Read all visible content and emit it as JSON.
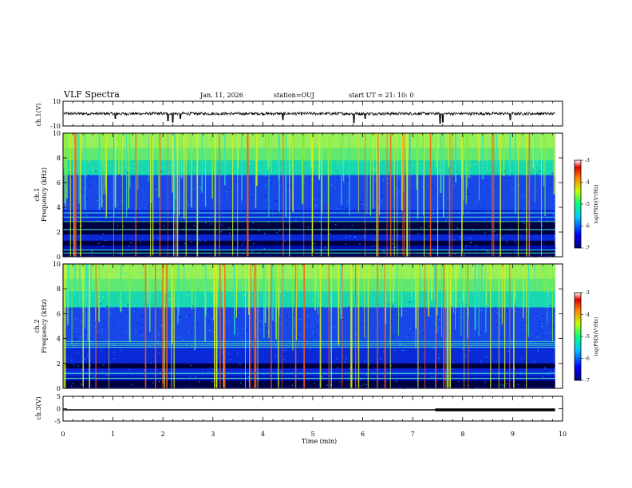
{
  "header": {
    "title": "VLF Spectra",
    "date": "Jan. 11, 2026",
    "station": "station=OUJ",
    "start": "start  UT =  21: 10: 0"
  },
  "chart_data": [
    {
      "id": "ch1-waveform",
      "type": "line",
      "ylabel": "ch.1(V)",
      "ylim": [
        -10,
        10
      ],
      "yticks": [
        "10",
        "-10"
      ],
      "baseline": 0,
      "noise_amplitude": 1.2,
      "spikes": [
        {
          "t": 1.05,
          "v": -4
        },
        {
          "t": 2.1,
          "v": -6
        },
        {
          "t": 2.2,
          "v": -7
        },
        {
          "t": 2.35,
          "v": -4
        },
        {
          "t": 4.4,
          "v": -5
        },
        {
          "t": 5.82,
          "v": -7.5
        },
        {
          "t": 6.05,
          "v": -4
        },
        {
          "t": 7.55,
          "v": -8
        },
        {
          "t": 7.6,
          "v": -7
        },
        {
          "t": 8.95,
          "v": -5
        }
      ]
    },
    {
      "id": "ch1-spectrogram",
      "type": "heatmap",
      "ylabel": "ch.1\nFrequency (kHz)",
      "ylabel_line1": "ch.1",
      "ylabel_line2": "Frequency (kHz)",
      "ylim": [
        0,
        10
      ],
      "yticks": [
        "0",
        "2",
        "4",
        "6",
        "8",
        "10"
      ],
      "colorbar": {
        "label": "log(PSD)(V²/Hz)",
        "range": [
          -7,
          -3
        ],
        "ticks": [
          "-3",
          "-4",
          "-5",
          "-6",
          "-7"
        ]
      },
      "dark_bands_khz": [
        [
          1.8,
          2.9
        ],
        [
          0.9,
          1.3
        ],
        [
          0.1,
          0.5
        ]
      ],
      "bright_lines_khz": [
        0.3,
        0.55,
        2.2,
        2.85,
        3.2,
        3.55
      ],
      "cutoff_khz": 6.6
    },
    {
      "id": "ch2-spectrogram",
      "type": "heatmap",
      "ylabel": "ch.2\nFrequency (kHz)",
      "ylabel_line1": "ch.2",
      "ylabel_line2": "Frequency (kHz)",
      "ylim": [
        0,
        10
      ],
      "yticks": [
        "0",
        "2",
        "4",
        "6",
        "8",
        "10"
      ],
      "colorbar": {
        "label": "log(PSD)(V²/Hz)",
        "range": [
          -7,
          -3
        ],
        "ticks": [
          "-3",
          "-4",
          "-5",
          "-6",
          "-7"
        ]
      },
      "dark_bands_khz": [
        [
          0.1,
          0.6
        ],
        [
          1.6,
          2.0
        ]
      ],
      "bright_lines_khz": [
        3.3,
        3.45,
        3.6,
        3.75,
        1.2,
        0.8
      ],
      "cutoff_khz": 6.5
    },
    {
      "id": "ch3-waveform",
      "type": "line",
      "ylabel": "ch.3(V)",
      "ylim": [
        -5,
        5
      ],
      "yticks": [
        "5",
        "0",
        "-5"
      ],
      "segments": [
        {
          "t0": 0.0,
          "t1": 7.45,
          "v": -0.5,
          "weight": "thin"
        },
        {
          "t0": 7.45,
          "t1": 9.85,
          "v": -0.5,
          "weight": "thick"
        }
      ]
    }
  ],
  "xaxis": {
    "label": "Time (min)",
    "range": [
      0,
      10
    ],
    "ticks": [
      "0",
      "1",
      "2",
      "3",
      "4",
      "5",
      "6",
      "7",
      "8",
      "9",
      "10"
    ],
    "data_end": 9.85
  }
}
